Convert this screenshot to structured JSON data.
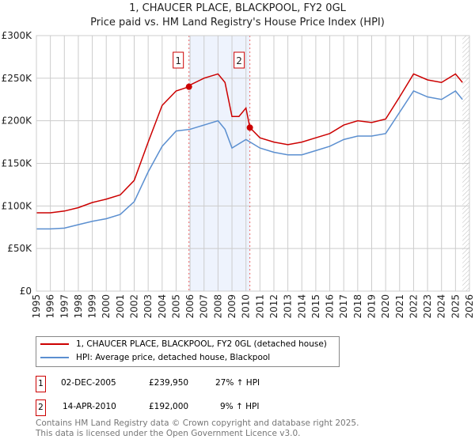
{
  "chart_data": {
    "type": "line",
    "title": "1, CHAUCER PLACE, BLACKPOOL, FY2 0GL",
    "subtitle": "Price paid vs. HM Land Registry's House Price Index (HPI)",
    "xlim": [
      1995,
      2026
    ],
    "ylim": [
      0,
      300000
    ],
    "x_ticks": [
      "1995",
      "1996",
      "1997",
      "1998",
      "1999",
      "2000",
      "2001",
      "2002",
      "2003",
      "2004",
      "2005",
      "2006",
      "2007",
      "2008",
      "2009",
      "2010",
      "2011",
      "2012",
      "2013",
      "2014",
      "2015",
      "2016",
      "2017",
      "2018",
      "2019",
      "2020",
      "2021",
      "2022",
      "2023",
      "2024",
      "2025",
      "2026"
    ],
    "y_ticks": [
      {
        "v": 0,
        "label": "£0"
      },
      {
        "v": 50000,
        "label": "£50K"
      },
      {
        "v": 100000,
        "label": "£100K"
      },
      {
        "v": 150000,
        "label": "£150K"
      },
      {
        "v": 200000,
        "label": "£200K"
      },
      {
        "v": 250000,
        "label": "£250K"
      },
      {
        "v": 300000,
        "label": "£300K"
      }
    ],
    "grid": true,
    "series": [
      {
        "name": "1, CHAUCER PLACE, BLACKPOOL, FY2 0GL (detached house)",
        "color": "#cc0000",
        "x": [
          1995,
          1996,
          1997,
          1998,
          1999,
          2000,
          2001,
          2002,
          2003,
          2004,
          2005,
          2005.92,
          2006,
          2007,
          2008,
          2008.5,
          2009,
          2009.5,
          2010,
          2010.28,
          2011,
          2012,
          2013,
          2014,
          2015,
          2016,
          2017,
          2018,
          2019,
          2020,
          2021,
          2022,
          2023,
          2024,
          2025,
          2025.5
        ],
        "y": [
          92000,
          92000,
          94000,
          98000,
          104000,
          108000,
          113000,
          130000,
          175000,
          218000,
          235000,
          239950,
          242000,
          250000,
          255000,
          245000,
          205000,
          205000,
          215000,
          192000,
          180000,
          175000,
          172000,
          175000,
          180000,
          185000,
          195000,
          200000,
          198000,
          202000,
          228000,
          255000,
          248000,
          245000,
          255000,
          245000
        ]
      },
      {
        "name": "HPI: Average price, detached house, Blackpool",
        "color": "#5b8fd0",
        "x": [
          1995,
          1996,
          1997,
          1998,
          1999,
          2000,
          2001,
          2002,
          2003,
          2004,
          2005,
          2006,
          2007,
          2008,
          2008.5,
          2009,
          2010,
          2011,
          2012,
          2013,
          2014,
          2015,
          2016,
          2017,
          2018,
          2019,
          2020,
          2021,
          2022,
          2023,
          2024,
          2025,
          2025.5
        ],
        "y": [
          73000,
          73000,
          74000,
          78000,
          82000,
          85000,
          90000,
          105000,
          140000,
          170000,
          188000,
          190000,
          195000,
          200000,
          190000,
          168000,
          178000,
          168000,
          163000,
          160000,
          160000,
          165000,
          170000,
          178000,
          182000,
          182000,
          185000,
          210000,
          235000,
          228000,
          225000,
          235000,
          225000
        ]
      }
    ],
    "sales": [
      {
        "id": "1",
        "x": 2005.92,
        "y": 239950
      },
      {
        "id": "2",
        "x": 2010.28,
        "y": 192000
      }
    ],
    "shaded_range": [
      2005.92,
      2010.28
    ],
    "future_from": 2025.5
  },
  "legend": {
    "red": "1, CHAUCER PLACE, BLACKPOOL, FY2 0GL (detached house)",
    "blue": "HPI: Average price, detached house, Blackpool"
  },
  "transactions": [
    {
      "id": "1",
      "date": "02-DEC-2005",
      "price": "£239,950",
      "hpi": "27% ↑ HPI"
    },
    {
      "id": "2",
      "date": "14-APR-2010",
      "price": "£192,000",
      "hpi": "9% ↑ HPI"
    }
  ],
  "footer": {
    "line1": "Contains HM Land Registry data © Crown copyright and database right 2025.",
    "line2": "This data is licensed under the Open Government Licence v3.0."
  },
  "colors": {
    "red": "#cc0000",
    "blue": "#5b8fd0",
    "shade": "#eef3fd"
  }
}
